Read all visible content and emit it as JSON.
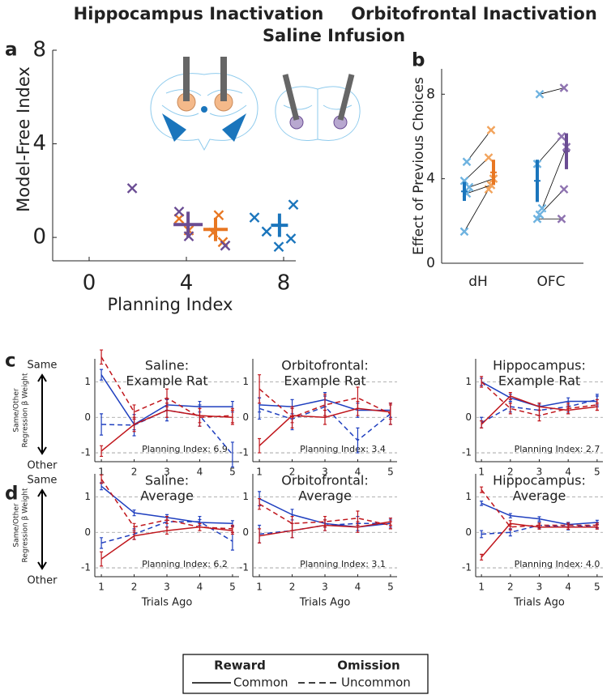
{
  "header": {
    "panel_labels": [
      "a",
      "b",
      "c",
      "d"
    ]
  },
  "regression_axis": {
    "top": "Same",
    "bottom": "Other",
    "label_lines": [
      "Same/Other",
      "Regression β Weight"
    ]
  },
  "bottom_legend": {
    "outcomes": [
      {
        "name": "Reward",
        "color": "#1f3fbf"
      },
      {
        "name": "Omission",
        "color": "#c0161c"
      }
    ],
    "transitions": [
      {
        "name": "Common",
        "dash": "solid"
      },
      {
        "name": "Uncommon",
        "dash": "dashed"
      }
    ]
  },
  "chart_data": [
    {
      "type": "scatter",
      "xlabel": "Planning Index",
      "ylabel": "Model-Free Index",
      "xlim": [
        -1.5,
        8.5
      ],
      "ylim": [
        -1,
        8
      ],
      "xticks": [
        0,
        4,
        8
      ],
      "yticks": [
        0,
        4,
        8
      ],
      "series": [
        {
          "name": "Hippocampus Inactivation",
          "color": "#e87722",
          "x": [
            3.7,
            4.1,
            5.33,
            5.5,
            5.1
          ],
          "y": [
            0.8,
            0.3,
            0.95,
            -0.2,
            0.2
          ],
          "mean_x": 5.2,
          "mean_y": 0.34,
          "x_err": 0.5,
          "y_err": 0.5
        },
        {
          "name": "Orbitofrontal Inactivation",
          "color": "#6a4c93",
          "x": [
            1.77,
            3.7,
            4.1,
            5.6
          ],
          "y": [
            2.1,
            1.1,
            0.05,
            -0.35
          ],
          "mean_x": 4.07,
          "mean_y": 0.55,
          "x_err": 0.6,
          "y_err": 0.55
        },
        {
          "name": "Saline Infusion",
          "color": "#1a75bc",
          "x": [
            6.8,
            7.3,
            7.8,
            8.3,
            8.4
          ],
          "y": [
            0.85,
            0.25,
            -0.4,
            -0.05,
            1.4
          ],
          "mean_x": 7.83,
          "mean_y": 0.52,
          "x_err": 0.35,
          "y_err": 0.5
        }
      ]
    },
    {
      "type": "paired",
      "ylabel": "Effect of Previous Choices",
      "categories": [
        "dH",
        "OFC"
      ],
      "ylim": [
        0,
        9.2
      ],
      "yticks": [
        0,
        4,
        8
      ],
      "saline_color": "#6fb3e0",
      "saline_mean_color": "#1a75bc",
      "groups": [
        {
          "color": "#f2a35c",
          "mean_color": "#e87722",
          "saline": [
            1.5,
            3.3,
            3.6,
            3.9,
            4.8
          ],
          "inactivation": [
            3.5,
            3.7,
            4.0,
            5.0,
            6.3
          ],
          "saline_mean": 3.4,
          "saline_err": 0.45,
          "inactivation_mean": 4.3,
          "inactivation_err": 0.6
        },
        {
          "color": "#8e73b0",
          "mean_color": "#6a4c93",
          "saline": [
            2.1,
            2.3,
            2.6,
            4.7,
            8.0
          ],
          "inactivation": [
            2.1,
            3.5,
            5.5,
            6.0,
            8.3
          ],
          "saline_mean": 3.9,
          "saline_err": 1.0,
          "inactivation_mean": 5.3,
          "inactivation_err": 0.85
        }
      ]
    },
    {
      "type": "line",
      "title": [
        "Saline:",
        "Example Rat"
      ],
      "annotation": "Planning Index: 6.9",
      "x": [
        1,
        2,
        3,
        4,
        5
      ],
      "xlim": [
        0.8,
        5.2
      ],
      "ylim": [
        -1.25,
        1.65
      ],
      "xticks": [
        1,
        2,
        3,
        4,
        5
      ],
      "yticks": [
        -1,
        0,
        1
      ],
      "grid": true,
      "series": [
        {
          "color": "#1f3fbf",
          "dash": "solid",
          "values": [
            1.2,
            -0.2,
            0.35,
            0.3,
            0.3
          ],
          "errors": [
            0.15,
            0.15,
            0.15,
            0.15,
            0.15
          ]
        },
        {
          "color": "#1f3fbf",
          "dash": "dashed",
          "values": [
            -0.2,
            -0.22,
            0.2,
            0.05,
            -1.05
          ],
          "errors": [
            0.3,
            0.3,
            0.3,
            0.3,
            0.35
          ]
        },
        {
          "color": "#c0161c",
          "dash": "solid",
          "values": [
            -0.95,
            -0.2,
            0.2,
            0.05,
            0.0
          ],
          "errors": [
            0.15,
            0.2,
            0.2,
            0.2,
            0.2
          ]
        },
        {
          "color": "#c0161c",
          "dash": "dashed",
          "values": [
            1.7,
            0.15,
            0.55,
            0.0,
            0.05
          ],
          "errors": [
            0.2,
            0.2,
            0.25,
            0.25,
            0.2
          ]
        }
      ]
    },
    {
      "type": "line",
      "title": [
        "Orbitofrontal:",
        "Example Rat"
      ],
      "annotation": "Planning Index: 3.4",
      "x": [
        1,
        2,
        3,
        4,
        5
      ],
      "xlim": [
        0.8,
        5.2
      ],
      "ylim": [
        -1.25,
        1.65
      ],
      "xticks": [
        1,
        2,
        3,
        4,
        5
      ],
      "yticks": [
        -1,
        0,
        1
      ],
      "grid": true,
      "series": [
        {
          "color": "#1f3fbf",
          "dash": "solid",
          "values": [
            0.35,
            0.3,
            0.5,
            0.2,
            0.2
          ],
          "errors": [
            0.2,
            0.2,
            0.2,
            0.2,
            0.2
          ]
        },
        {
          "color": "#1f3fbf",
          "dash": "dashed",
          "values": [
            0.25,
            -0.05,
            0.3,
            -0.65,
            0.1
          ],
          "errors": [
            0.3,
            0.3,
            0.3,
            0.35,
            0.3
          ]
        },
        {
          "color": "#c0161c",
          "dash": "solid",
          "values": [
            -0.8,
            0.05,
            0.0,
            0.25,
            0.15
          ],
          "errors": [
            0.2,
            0.2,
            0.2,
            0.2,
            0.2
          ]
        },
        {
          "color": "#c0161c",
          "dash": "dashed",
          "values": [
            0.8,
            0.0,
            0.35,
            0.55,
            0.1
          ],
          "errors": [
            0.4,
            0.3,
            0.3,
            0.3,
            0.3
          ]
        }
      ]
    },
    {
      "type": "line",
      "title": [
        "Hippocampus:",
        "Example Rat"
      ],
      "annotation": "Planning Index: 2.7",
      "x": [
        1,
        2,
        3,
        4,
        5
      ],
      "xlim": [
        0.8,
        5.2
      ],
      "ylim": [
        -1.25,
        1.65
      ],
      "xticks": [
        1,
        2,
        3,
        4,
        5
      ],
      "yticks": [
        -1,
        0,
        1
      ],
      "grid": true,
      "series": [
        {
          "color": "#1f3fbf",
          "dash": "solid",
          "values": [
            1.0,
            0.55,
            0.3,
            0.45,
            0.45
          ],
          "errors": [
            0.1,
            0.1,
            0.1,
            0.1,
            0.15
          ]
        },
        {
          "color": "#1f3fbf",
          "dash": "dashed",
          "values": [
            -0.15,
            0.3,
            0.2,
            0.3,
            0.5
          ],
          "errors": [
            0.15,
            0.15,
            0.15,
            0.15,
            0.15
          ]
        },
        {
          "color": "#c0161c",
          "dash": "solid",
          "values": [
            -0.2,
            0.6,
            0.3,
            0.2,
            0.3
          ],
          "errors": [
            0.1,
            0.1,
            0.1,
            0.1,
            0.1
          ]
        },
        {
          "color": "#c0161c",
          "dash": "dashed",
          "values": [
            1.0,
            0.25,
            0.05,
            0.25,
            0.35
          ],
          "errors": [
            0.15,
            0.15,
            0.15,
            0.15,
            0.15
          ]
        }
      ]
    },
    {
      "type": "line",
      "title": [
        "Saline:",
        "Average"
      ],
      "annotation": "Planning Index: 6.2",
      "xlabel": "Trials Ago",
      "x": [
        1,
        2,
        3,
        4,
        5
      ],
      "xlim": [
        0.8,
        5.2
      ],
      "ylim": [
        -1.25,
        1.65
      ],
      "xticks": [
        1,
        2,
        3,
        4,
        5
      ],
      "yticks": [
        -1,
        0,
        1
      ],
      "grid": true,
      "series": [
        {
          "color": "#1f3fbf",
          "dash": "solid",
          "values": [
            1.3,
            0.55,
            0.42,
            0.28,
            0.25
          ],
          "errors": [
            0.1,
            0.08,
            0.08,
            0.08,
            0.08
          ]
        },
        {
          "color": "#1f3fbf",
          "dash": "dashed",
          "values": [
            -0.3,
            -0.05,
            0.3,
            0.3,
            -0.25
          ],
          "errors": [
            0.15,
            0.15,
            0.15,
            0.15,
            0.25
          ]
        },
        {
          "color": "#c0161c",
          "dash": "solid",
          "values": [
            -0.75,
            -0.1,
            0.05,
            0.15,
            0.05
          ],
          "errors": [
            0.2,
            0.1,
            0.1,
            0.1,
            0.1
          ]
        },
        {
          "color": "#c0161c",
          "dash": "dashed",
          "values": [
            1.5,
            0.15,
            0.35,
            0.15,
            0.1
          ],
          "errors": [
            0.12,
            0.1,
            0.1,
            0.1,
            0.1
          ]
        }
      ]
    },
    {
      "type": "line",
      "title": [
        "Orbitofrontal:",
        "Average"
      ],
      "annotation": "Planning Index: 3.1",
      "xlabel": "Trials Ago",
      "x": [
        1,
        2,
        3,
        4,
        5
      ],
      "xlim": [
        0.8,
        5.2
      ],
      "ylim": [
        -1.25,
        1.65
      ],
      "xticks": [
        1,
        2,
        3,
        4,
        5
      ],
      "yticks": [
        -1,
        0,
        1
      ],
      "grid": true,
      "series": [
        {
          "color": "#1f3fbf",
          "dash": "solid",
          "values": [
            0.95,
            0.5,
            0.25,
            0.15,
            0.25
          ],
          "errors": [
            0.2,
            0.15,
            0.1,
            0.1,
            0.1
          ]
        },
        {
          "color": "#1f3fbf",
          "dash": "dashed",
          "values": [
            -0.05,
            0.05,
            0.2,
            0.25,
            0.25
          ],
          "errors": [
            0.25,
            0.2,
            0.15,
            0.2,
            0.15
          ]
        },
        {
          "color": "#c0161c",
          "dash": "solid",
          "values": [
            -0.1,
            0.05,
            0.2,
            0.15,
            0.3
          ],
          "errors": [
            0.2,
            0.2,
            0.15,
            0.15,
            0.1
          ]
        },
        {
          "color": "#c0161c",
          "dash": "dashed",
          "values": [
            0.8,
            0.25,
            0.3,
            0.4,
            0.2
          ],
          "errors": [
            0.15,
            0.2,
            0.15,
            0.2,
            0.1
          ]
        }
      ]
    },
    {
      "type": "line",
      "title": [
        "Hippocampus:",
        "Average"
      ],
      "annotation": "Planning Index: 4.0",
      "xlabel": "Trials Ago",
      "x": [
        1,
        2,
        3,
        4,
        5
      ],
      "xlim": [
        0.8,
        5.2
      ],
      "ylim": [
        -1.25,
        1.65
      ],
      "xticks": [
        1,
        2,
        3,
        4,
        5
      ],
      "yticks": [
        -1,
        0,
        1
      ],
      "grid": true,
      "series": [
        {
          "color": "#1f3fbf",
          "dash": "solid",
          "values": [
            0.82,
            0.47,
            0.38,
            0.22,
            0.28
          ],
          "errors": [
            0.06,
            0.06,
            0.06,
            0.06,
            0.06
          ]
        },
        {
          "color": "#1f3fbf",
          "dash": "dashed",
          "values": [
            -0.05,
            0.0,
            0.2,
            0.15,
            0.2
          ],
          "errors": [
            0.1,
            0.1,
            0.08,
            0.08,
            0.08
          ]
        },
        {
          "color": "#c0161c",
          "dash": "solid",
          "values": [
            -0.7,
            0.25,
            0.15,
            0.15,
            0.15
          ],
          "errors": [
            0.08,
            0.08,
            0.06,
            0.06,
            0.06
          ]
        },
        {
          "color": "#c0161c",
          "dash": "dashed",
          "values": [
            1.2,
            0.15,
            0.2,
            0.2,
            0.2
          ],
          "errors": [
            0.08,
            0.08,
            0.06,
            0.06,
            0.06
          ]
        }
      ]
    }
  ]
}
